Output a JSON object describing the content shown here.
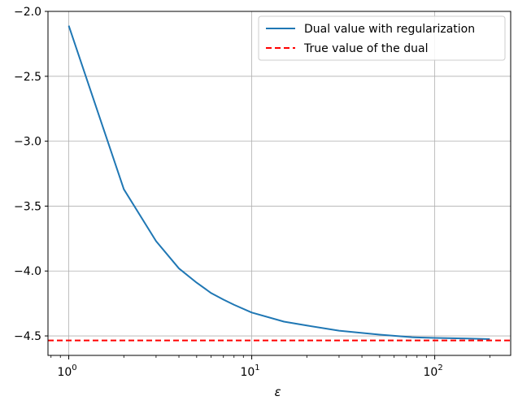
{
  "chart_data": {
    "type": "line",
    "title": "",
    "xlabel": "ε",
    "ylabel": "",
    "xscale": "log",
    "xlim": [
      0.77,
      260
    ],
    "ylim": [
      -4.65,
      -2.0
    ],
    "grid": true,
    "legend_position": "top-right",
    "x_ticks": [
      {
        "value": 1,
        "base": "10",
        "exp": "0"
      },
      {
        "value": 10,
        "base": "10",
        "exp": "1"
      },
      {
        "value": 100,
        "base": "10",
        "exp": "2"
      }
    ],
    "y_ticks": [
      {
        "value": -2.0,
        "label": "−2.0"
      },
      {
        "value": -2.5,
        "label": "−2.5"
      },
      {
        "value": -3.0,
        "label": "−3.0"
      },
      {
        "value": -3.5,
        "label": "−3.5"
      },
      {
        "value": -4.0,
        "label": "−4.0"
      },
      {
        "value": -4.5,
        "label": "−4.5"
      }
    ],
    "series": [
      {
        "name": "Dual value with regularization",
        "color": "#1f77b4",
        "style": "solid",
        "x": [
          1,
          2,
          3,
          4,
          5,
          6,
          7,
          8,
          10,
          15,
          20,
          30,
          50,
          75,
          100,
          150,
          200
        ],
        "y": [
          -2.11,
          -3.37,
          -3.77,
          -3.98,
          -4.09,
          -4.17,
          -4.22,
          -4.26,
          -4.32,
          -4.39,
          -4.42,
          -4.46,
          -4.49,
          -4.51,
          -4.515,
          -4.52,
          -4.525
        ]
      },
      {
        "name": "True value of the dual",
        "color": "#ff0000",
        "style": "dashed",
        "hline": -4.535
      }
    ]
  }
}
